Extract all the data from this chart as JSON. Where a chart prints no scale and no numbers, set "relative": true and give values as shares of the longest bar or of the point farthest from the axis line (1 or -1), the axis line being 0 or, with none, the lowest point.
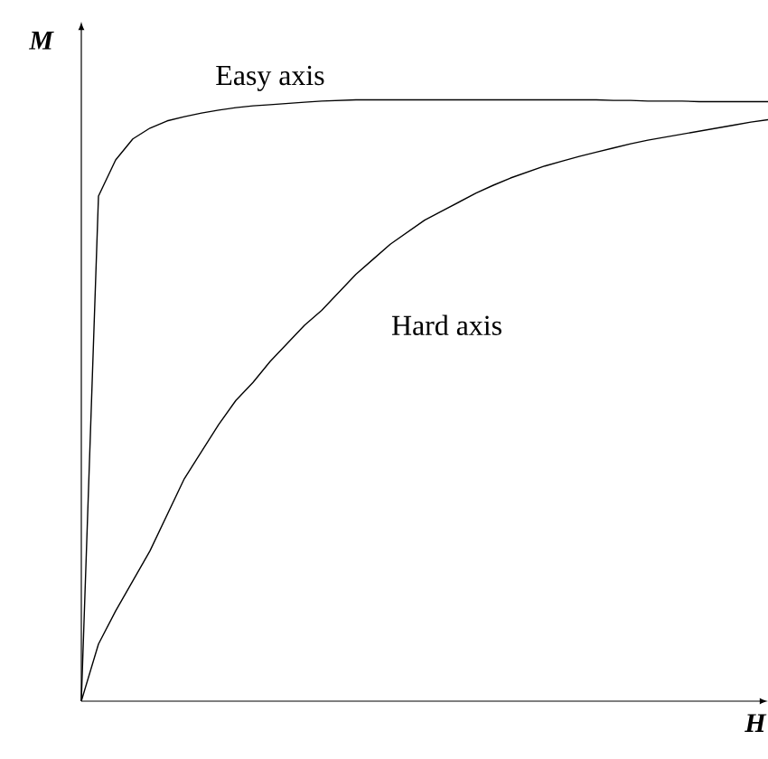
{
  "chart_data": {
    "type": "line",
    "relative": true,
    "xlabel": "H",
    "ylabel": "M",
    "tick_labels": false,
    "legend": false,
    "marker": "none",
    "line_style": "solid",
    "categories": [
      null,
      null,
      null,
      null,
      null,
      null,
      null,
      null,
      null,
      null,
      null,
      null,
      null,
      null,
      null,
      null,
      null,
      null,
      null,
      null,
      null,
      null,
      null,
      null,
      null,
      null,
      null,
      null,
      null,
      null,
      null,
      null,
      null,
      null,
      null,
      null,
      null,
      null,
      null,
      null,
      null
    ],
    "series": [
      {
        "name": "Easy axis",
        "color": "#000000",
        "values": [
          0,
          0.84,
          0.9,
          0.935,
          0.953,
          0.965,
          0.972,
          0.978,
          0.983,
          0.987,
          0.99,
          0.992,
          0.994,
          0.996,
          0.998,
          0.999,
          1,
          1,
          1,
          1,
          1,
          1,
          1,
          1,
          1,
          1,
          1,
          1,
          1,
          1,
          1,
          0.999,
          0.999,
          0.998,
          0.998,
          0.998,
          0.997,
          0.997,
          0.997,
          0.997,
          0.997
        ]
      },
      {
        "name": "Hard axis",
        "color": "#000000",
        "values": [
          0,
          0.095,
          0.15,
          0.2,
          0.25,
          0.31,
          0.37,
          0.415,
          0.46,
          0.5,
          0.53,
          0.565,
          0.595,
          0.625,
          0.65,
          0.68,
          0.71,
          0.735,
          0.76,
          0.78,
          0.8,
          0.815,
          0.83,
          0.845,
          0.858,
          0.87,
          0.88,
          0.89,
          0.898,
          0.906,
          0.913,
          0.92,
          0.927,
          0.933,
          0.938,
          0.943,
          0.948,
          0.953,
          0.958,
          0.963,
          0.967
        ]
      }
    ]
  }
}
